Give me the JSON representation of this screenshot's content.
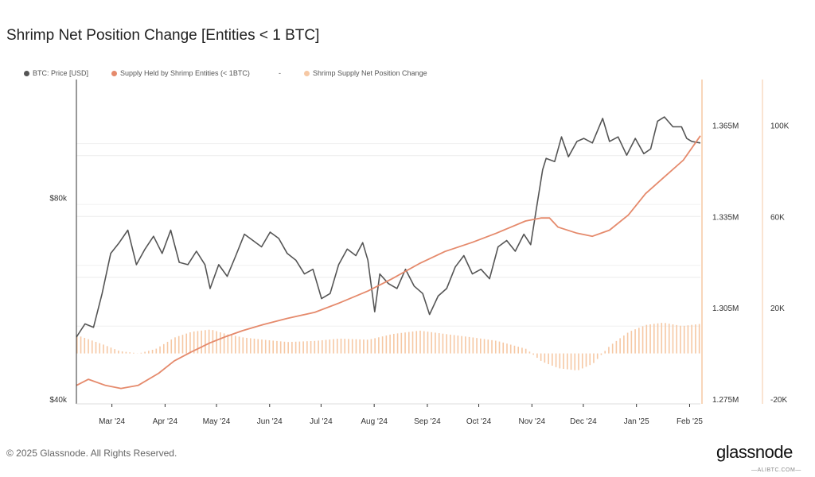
{
  "title": "Shrimp Net Position Change [Entities < 1 BTC]",
  "legend": [
    {
      "label": "BTC: Price [USD]",
      "color": "#555555"
    },
    {
      "label": "Supply Held by Shrimp Entities (< 1BTC)",
      "color": "#e58a6c"
    },
    {
      "label": "Shrimp Supply Net Position Change",
      "color": "#f6c8a4"
    }
  ],
  "legend_separator": "-",
  "footer": "© 2025 Glassnode. All Rights Reserved.",
  "brand": "glassnode",
  "watermark": "—ALIBTC.COM—",
  "chart_data": {
    "type": "line",
    "x_tick_labels": [
      "Mar '24",
      "Apr '24",
      "May '24",
      "Jun '24",
      "Jul '24",
      "Aug '24",
      "Sep '24",
      "Oct '24",
      "Nov '24",
      "Dec '24",
      "Jan '25",
      "Feb '25"
    ],
    "x_range": [
      "2024-02-13",
      "2025-02-11"
    ],
    "axes": {
      "price": {
        "side": "left",
        "scale": "log",
        "range": [
          40000,
          120000
        ],
        "tick_labels": [
          "$40k",
          "$80k"
        ],
        "tick_values": [
          40000,
          80000
        ]
      },
      "supply": {
        "side": "right-inner",
        "range": [
          1.275,
          1.38
        ],
        "tick_labels": [
          "1.275M",
          "1.305M",
          "1.335M",
          "1.365M"
        ],
        "tick_values": [
          1.275,
          1.305,
          1.335,
          1.365
        ]
      },
      "change": {
        "side": "right-outer",
        "range": [
          -20000,
          120000
        ],
        "tick_labels": [
          "-20K",
          "20K",
          "60K",
          "100K"
        ],
        "tick_values": [
          -20000,
          20000,
          60000,
          100000
        ]
      }
    },
    "grid": true,
    "series": [
      {
        "name": "BTC: Price [USD]",
        "axis": "price",
        "color": "#555555",
        "kind": "line",
        "points": [
          [
            "2024-02-13",
            49500
          ],
          [
            "2024-02-18",
            51800
          ],
          [
            "2024-02-23",
            51200
          ],
          [
            "2024-02-28",
            57500
          ],
          [
            "2024-03-04",
            66000
          ],
          [
            "2024-03-09",
            68500
          ],
          [
            "2024-03-14",
            71500
          ],
          [
            "2024-03-19",
            63500
          ],
          [
            "2024-03-24",
            67000
          ],
          [
            "2024-03-29",
            70000
          ],
          [
            "2024-04-03",
            66000
          ],
          [
            "2024-04-08",
            71500
          ],
          [
            "2024-04-13",
            64000
          ],
          [
            "2024-04-18",
            63500
          ],
          [
            "2024-04-23",
            66500
          ],
          [
            "2024-04-28",
            63500
          ],
          [
            "2024-05-01",
            58500
          ],
          [
            "2024-05-06",
            63500
          ],
          [
            "2024-05-11",
            61000
          ],
          [
            "2024-05-16",
            65500
          ],
          [
            "2024-05-21",
            70500
          ],
          [
            "2024-05-26",
            69000
          ],
          [
            "2024-05-31",
            67500
          ],
          [
            "2024-06-05",
            71000
          ],
          [
            "2024-06-10",
            69500
          ],
          [
            "2024-06-15",
            66000
          ],
          [
            "2024-06-20",
            64500
          ],
          [
            "2024-06-25",
            61500
          ],
          [
            "2024-06-30",
            62500
          ],
          [
            "2024-07-05",
            56500
          ],
          [
            "2024-07-10",
            57500
          ],
          [
            "2024-07-15",
            63500
          ],
          [
            "2024-07-20",
            67000
          ],
          [
            "2024-07-25",
            65500
          ],
          [
            "2024-07-29",
            68500
          ],
          [
            "2024-08-01",
            64500
          ],
          [
            "2024-08-05",
            54000
          ],
          [
            "2024-08-08",
            61500
          ],
          [
            "2024-08-13",
            59500
          ],
          [
            "2024-08-18",
            58500
          ],
          [
            "2024-08-23",
            62500
          ],
          [
            "2024-08-28",
            59000
          ],
          [
            "2024-09-02",
            57500
          ],
          [
            "2024-09-06",
            53500
          ],
          [
            "2024-09-11",
            57000
          ],
          [
            "2024-09-16",
            58500
          ],
          [
            "2024-09-21",
            63000
          ],
          [
            "2024-09-26",
            65500
          ],
          [
            "2024-10-01",
            61500
          ],
          [
            "2024-10-06",
            62500
          ],
          [
            "2024-10-11",
            60500
          ],
          [
            "2024-10-16",
            67500
          ],
          [
            "2024-10-21",
            69000
          ],
          [
            "2024-10-26",
            66500
          ],
          [
            "2024-10-31",
            70500
          ],
          [
            "2024-11-04",
            68000
          ],
          [
            "2024-11-07",
            76000
          ],
          [
            "2024-11-11",
            88000
          ],
          [
            "2024-11-13",
            91500
          ],
          [
            "2024-11-18",
            90500
          ],
          [
            "2024-11-22",
            98500
          ],
          [
            "2024-11-26",
            92000
          ],
          [
            "2024-12-01",
            97000
          ],
          [
            "2024-12-05",
            98000
          ],
          [
            "2024-12-10",
            96500
          ],
          [
            "2024-12-16",
            105000
          ],
          [
            "2024-12-20",
            97000
          ],
          [
            "2024-12-25",
            98500
          ],
          [
            "2024-12-30",
            92500
          ],
          [
            "2025-01-04",
            98000
          ],
          [
            "2025-01-09",
            93000
          ],
          [
            "2025-01-13",
            94500
          ],
          [
            "2025-01-17",
            104000
          ],
          [
            "2025-01-21",
            105500
          ],
          [
            "2025-01-26",
            102000
          ],
          [
            "2025-01-31",
            102000
          ],
          [
            "2025-02-03",
            98000
          ],
          [
            "2025-02-06",
            97000
          ],
          [
            "2025-02-11",
            96500
          ]
        ]
      },
      {
        "name": "Supply Held by Shrimp Entities (< 1BTC)",
        "axis": "supply",
        "color": "#e58a6c",
        "kind": "line",
        "points": [
          [
            "2024-02-13",
            1.2795
          ],
          [
            "2024-02-20",
            1.2815
          ],
          [
            "2024-03-01",
            1.2795
          ],
          [
            "2024-03-10",
            1.2785
          ],
          [
            "2024-03-20",
            1.2795
          ],
          [
            "2024-04-01",
            1.2835
          ],
          [
            "2024-04-10",
            1.2875
          ],
          [
            "2024-04-20",
            1.2905
          ],
          [
            "2024-05-01",
            1.2935
          ],
          [
            "2024-05-10",
            1.2955
          ],
          [
            "2024-05-20",
            1.2975
          ],
          [
            "2024-06-01",
            1.2995
          ],
          [
            "2024-06-15",
            1.3015
          ],
          [
            "2024-07-01",
            1.3035
          ],
          [
            "2024-07-15",
            1.3065
          ],
          [
            "2024-08-01",
            1.3105
          ],
          [
            "2024-08-15",
            1.3145
          ],
          [
            "2024-08-31",
            1.3195
          ],
          [
            "2024-09-15",
            1.3235
          ],
          [
            "2024-10-01",
            1.3265
          ],
          [
            "2024-10-15",
            1.3295
          ],
          [
            "2024-11-01",
            1.3335
          ],
          [
            "2024-11-10",
            1.3345
          ],
          [
            "2024-11-15",
            1.3345
          ],
          [
            "2024-11-20",
            1.3315
          ],
          [
            "2024-12-01",
            1.3295
          ],
          [
            "2024-12-10",
            1.3285
          ],
          [
            "2024-12-20",
            1.3305
          ],
          [
            "2024-12-31",
            1.3355
          ],
          [
            "2025-01-10",
            1.3425
          ],
          [
            "2025-01-20",
            1.3475
          ],
          [
            "2025-02-01",
            1.3535
          ],
          [
            "2025-02-11",
            1.3615
          ]
        ]
      },
      {
        "name": "Shrimp Supply Net Position Change",
        "axis": "change",
        "color": "#f6c8a4",
        "kind": "bar",
        "points": [
          [
            "2024-02-13",
            8000
          ],
          [
            "2024-02-28",
            4000
          ],
          [
            "2024-03-09",
            1000
          ],
          [
            "2024-03-20",
            0
          ],
          [
            "2024-03-30",
            2000
          ],
          [
            "2024-04-10",
            7000
          ],
          [
            "2024-04-20",
            9500
          ],
          [
            "2024-05-01",
            10500
          ],
          [
            "2024-05-10",
            8500
          ],
          [
            "2024-05-20",
            7000
          ],
          [
            "2024-06-01",
            6000
          ],
          [
            "2024-06-15",
            5000
          ],
          [
            "2024-07-01",
            5500
          ],
          [
            "2024-07-15",
            6500
          ],
          [
            "2024-08-01",
            6000
          ],
          [
            "2024-08-15",
            8500
          ],
          [
            "2024-08-31",
            10000
          ],
          [
            "2024-09-15",
            8500
          ],
          [
            "2024-10-01",
            7000
          ],
          [
            "2024-10-15",
            5500
          ],
          [
            "2024-11-01",
            2000
          ],
          [
            "2024-11-10",
            -3500
          ],
          [
            "2024-11-20",
            -6500
          ],
          [
            "2024-12-01",
            -7500
          ],
          [
            "2024-12-10",
            -4500
          ],
          [
            "2024-12-20",
            3500
          ],
          [
            "2024-12-31",
            9500
          ],
          [
            "2025-01-10",
            12500
          ],
          [
            "2025-01-20",
            13500
          ],
          [
            "2025-01-31",
            12000
          ],
          [
            "2025-02-11",
            13000
          ]
        ]
      }
    ]
  }
}
